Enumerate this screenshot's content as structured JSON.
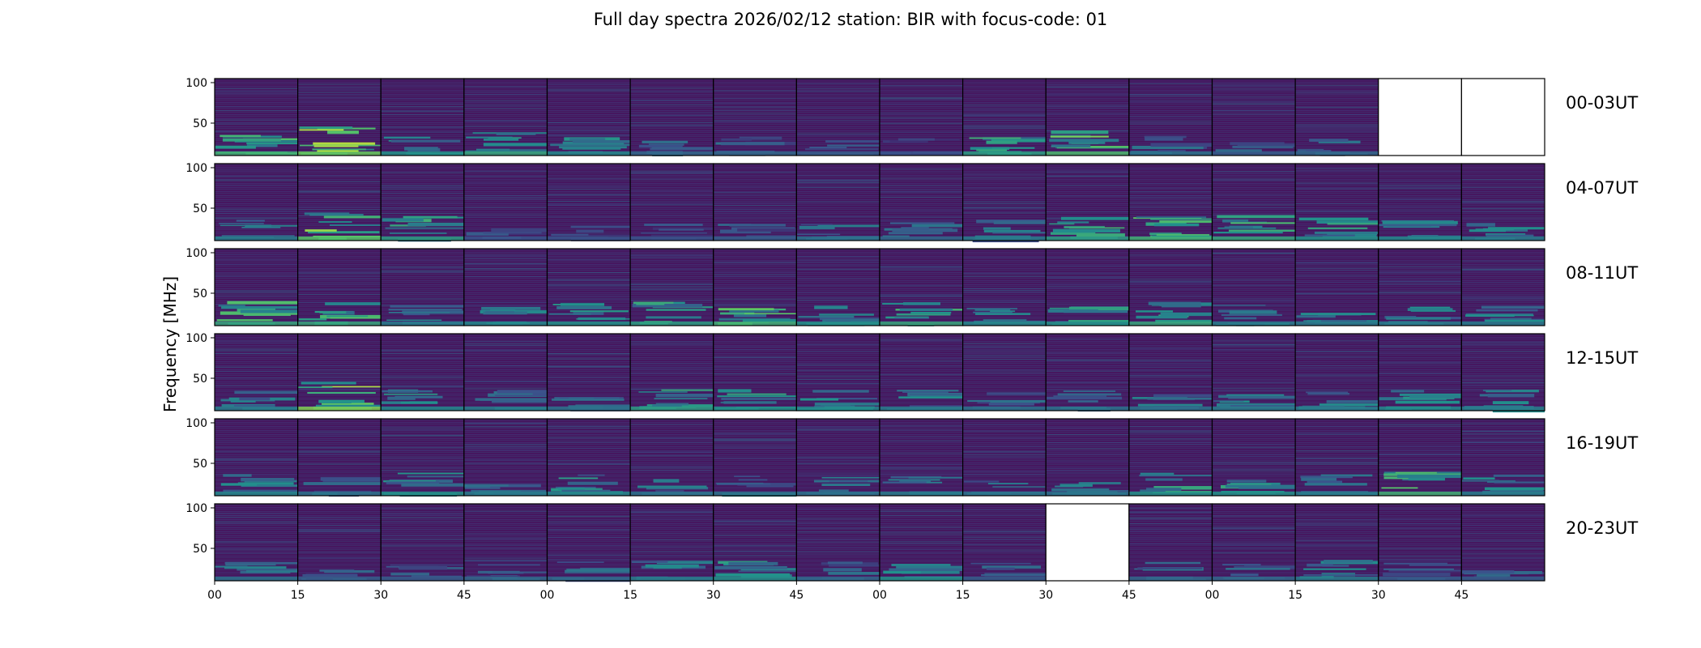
{
  "chart_data": {
    "type": "heatmap",
    "title": "Full day spectra 2026/02/12 station: BIR with focus-code: 01",
    "ylabel": "Frequency [MHz]",
    "xlabel": "",
    "ylim": [
      10,
      105
    ],
    "yticks": [
      50,
      100
    ],
    "xticks": [
      "00",
      "15",
      "30",
      "45",
      "00",
      "15",
      "30",
      "45",
      "00",
      "15",
      "30",
      "45",
      "00",
      "15",
      "30",
      "45"
    ],
    "colormap": "viridis",
    "rows": [
      {
        "label": "00-03UT",
        "intensity": [
          0.75,
          0.9,
          0.6,
          0.7,
          0.55,
          0.4,
          0.4,
          0.35,
          0.3,
          0.65,
          0.8,
          0.45,
          0.35,
          0.4,
          null,
          null
        ]
      },
      {
        "label": "04-07UT",
        "intensity": [
          0.5,
          0.85,
          0.65,
          0.3,
          0.3,
          0.3,
          0.35,
          0.45,
          0.4,
          0.5,
          0.65,
          0.75,
          0.7,
          0.6,
          0.55,
          0.5
        ]
      },
      {
        "label": "08-11UT",
        "intensity": [
          0.7,
          0.7,
          0.5,
          0.55,
          0.6,
          0.65,
          0.75,
          0.6,
          0.7,
          0.55,
          0.6,
          0.7,
          0.5,
          0.5,
          0.5,
          0.5
        ]
      },
      {
        "label": "12-15UT",
        "intensity": [
          0.5,
          0.95,
          0.55,
          0.5,
          0.45,
          0.65,
          0.6,
          0.55,
          0.5,
          0.45,
          0.45,
          0.45,
          0.5,
          0.5,
          0.55,
          0.5
        ]
      },
      {
        "label": "16-19UT",
        "intensity": [
          0.55,
          0.45,
          0.6,
          0.5,
          0.55,
          0.45,
          0.45,
          0.45,
          0.5,
          0.45,
          0.45,
          0.6,
          0.6,
          0.5,
          0.75,
          0.5
        ]
      },
      {
        "label": "20-23UT",
        "intensity": [
          0.45,
          0.35,
          0.35,
          0.4,
          0.4,
          0.5,
          0.6,
          0.4,
          0.6,
          0.35,
          null,
          0.4,
          0.4,
          0.5,
          0.35,
          0.35
        ]
      }
    ]
  }
}
